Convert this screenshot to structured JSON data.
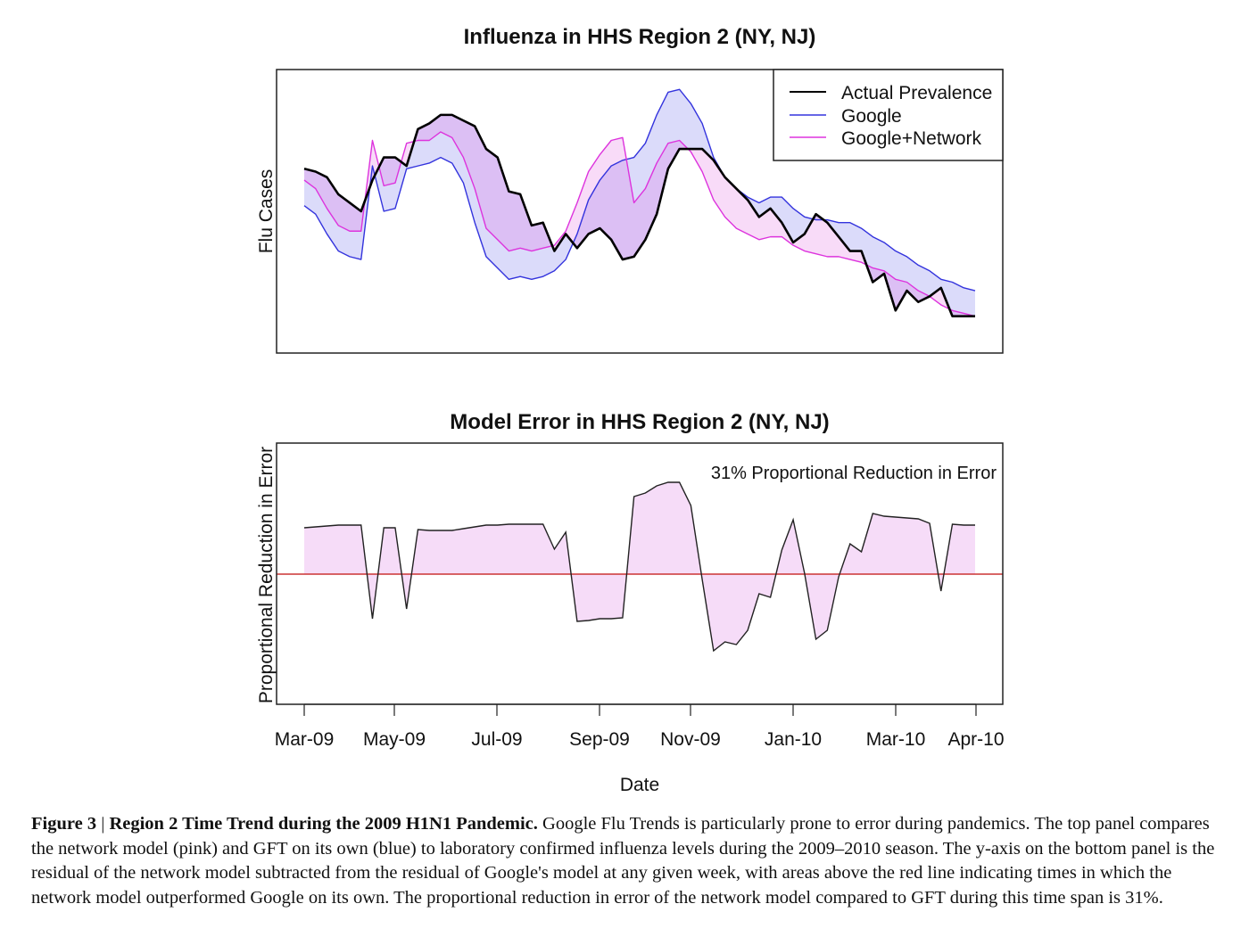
{
  "chart_data": [
    {
      "type": "line",
      "title": "Influenza in HHS Region 2 (NY, NJ)",
      "xlabel": "",
      "ylabel": "Flu Cases",
      "x_ticks": [
        "Mar-09",
        "May-09",
        "Jul-09",
        "Sep-09",
        "Nov-09",
        "Jan-10",
        "Mar-10",
        "Apr-10"
      ],
      "x_interval": "weekly",
      "ylim": [
        0,
        100
      ],
      "y_ticks_shown": false,
      "grid": false,
      "legend_position": "top-right",
      "fill_between": [
        "Actual Prevalence vs Google",
        "Actual Prevalence vs Google+Network"
      ],
      "series": [
        {
          "name": "Actual Prevalence",
          "color": "#000000",
          "values": [
            65,
            64,
            62,
            56,
            53,
            50,
            61,
            69,
            69,
            66,
            79,
            81,
            84,
            84,
            82,
            80,
            72,
            69,
            57,
            56,
            45,
            46,
            36,
            42,
            37,
            42,
            44,
            40,
            33,
            34,
            40,
            49,
            65,
            72,
            72,
            72,
            68,
            62,
            58,
            54,
            48,
            51,
            46,
            39,
            42,
            49,
            46,
            41,
            36,
            36,
            25,
            28,
            15,
            22,
            18,
            20,
            23,
            13,
            13,
            13
          ]
        },
        {
          "name": "Google",
          "color": "#3333dd",
          "fill": "#dcdcf8",
          "values": [
            52,
            49,
            42,
            36,
            34,
            33,
            66,
            50,
            51,
            65,
            66,
            67,
            69,
            67,
            60,
            46,
            34,
            30,
            26,
            27,
            26,
            27,
            29,
            33,
            42,
            54,
            61,
            66,
            68,
            69,
            74,
            84,
            92,
            93,
            88,
            81,
            69,
            62,
            58,
            55,
            53,
            55,
            55,
            51,
            48,
            47,
            47,
            46,
            46,
            44,
            41,
            39,
            36,
            34,
            31,
            29,
            26,
            25,
            23,
            22
          ]
        },
        {
          "name": "Google+Network",
          "color": "#dd33dd",
          "fill": "#f8d8f8",
          "values": [
            61,
            58,
            51,
            45,
            43,
            43,
            75,
            59,
            60,
            74,
            75,
            75,
            78,
            76,
            69,
            58,
            44,
            40,
            36,
            37,
            36,
            37,
            38,
            43,
            53,
            64,
            70,
            75,
            76,
            53,
            58,
            67,
            74,
            75,
            71,
            64,
            54,
            48,
            44,
            42,
            40,
            41,
            41,
            38,
            36,
            35,
            34,
            34,
            33,
            32,
            30,
            29,
            26,
            25,
            22,
            20,
            17,
            15,
            14,
            13
          ]
        }
      ]
    },
    {
      "type": "area",
      "title": "Model Error in HHS Region 2 (NY, NJ)",
      "xlabel": "Date",
      "ylabel": "Proportional Reduction in Error",
      "annotation": "31% Proportional Reduction in Error",
      "x_ticks": [
        "Mar-09",
        "May-09",
        "Jul-09",
        "Sep-09",
        "Nov-09",
        "Jan-10",
        "Mar-10",
        "Apr-10"
      ],
      "x_interval": "weekly",
      "ylim": [
        -1.46,
        1.47
      ],
      "y_ticks_shown": false,
      "reference_line": {
        "y": 0,
        "color": "#cc3333"
      },
      "fill_color": "#f6dcf8",
      "line_color": "#222222",
      "values": [
        0.52,
        0.53,
        0.54,
        0.55,
        0.55,
        0.55,
        -0.5,
        0.52,
        0.52,
        -0.39,
        0.5,
        0.49,
        0.49,
        0.49,
        0.51,
        0.53,
        0.55,
        0.55,
        0.56,
        0.56,
        0.56,
        0.56,
        0.28,
        0.47,
        -0.53,
        -0.52,
        -0.5,
        -0.5,
        -0.49,
        0.87,
        0.91,
        0.99,
        1.03,
        1.03,
        0.77,
        -0.06,
        -0.86,
        -0.76,
        -0.79,
        -0.63,
        -0.22,
        -0.26,
        0.27,
        0.61,
        0.01,
        -0.73,
        -0.63,
        -0.03,
        0.34,
        0.25,
        0.68,
        0.65,
        0.64,
        0.63,
        0.62,
        0.57,
        -0.19,
        0.56,
        0.55,
        0.55
      ]
    }
  ],
  "caption": {
    "label": "Figure 3",
    "separator": "|",
    "heading": "Region 2 Time Trend during the 2009 H1N1 Pandemic.",
    "body": "Google Flu Trends is particularly prone to error during pandemics. The top panel compares the network model (pink) and GFT on its own (blue) to laboratory confirmed influenza levels during the 2009–2010 season. The y-axis on the bottom panel is the residual of the network model subtracted from the residual of Google's model at any given week, with areas above the red line indicating times in which the network model outperformed Google on its own. The proportional reduction in error of the network model compared to GFT during this time span is 31%."
  }
}
